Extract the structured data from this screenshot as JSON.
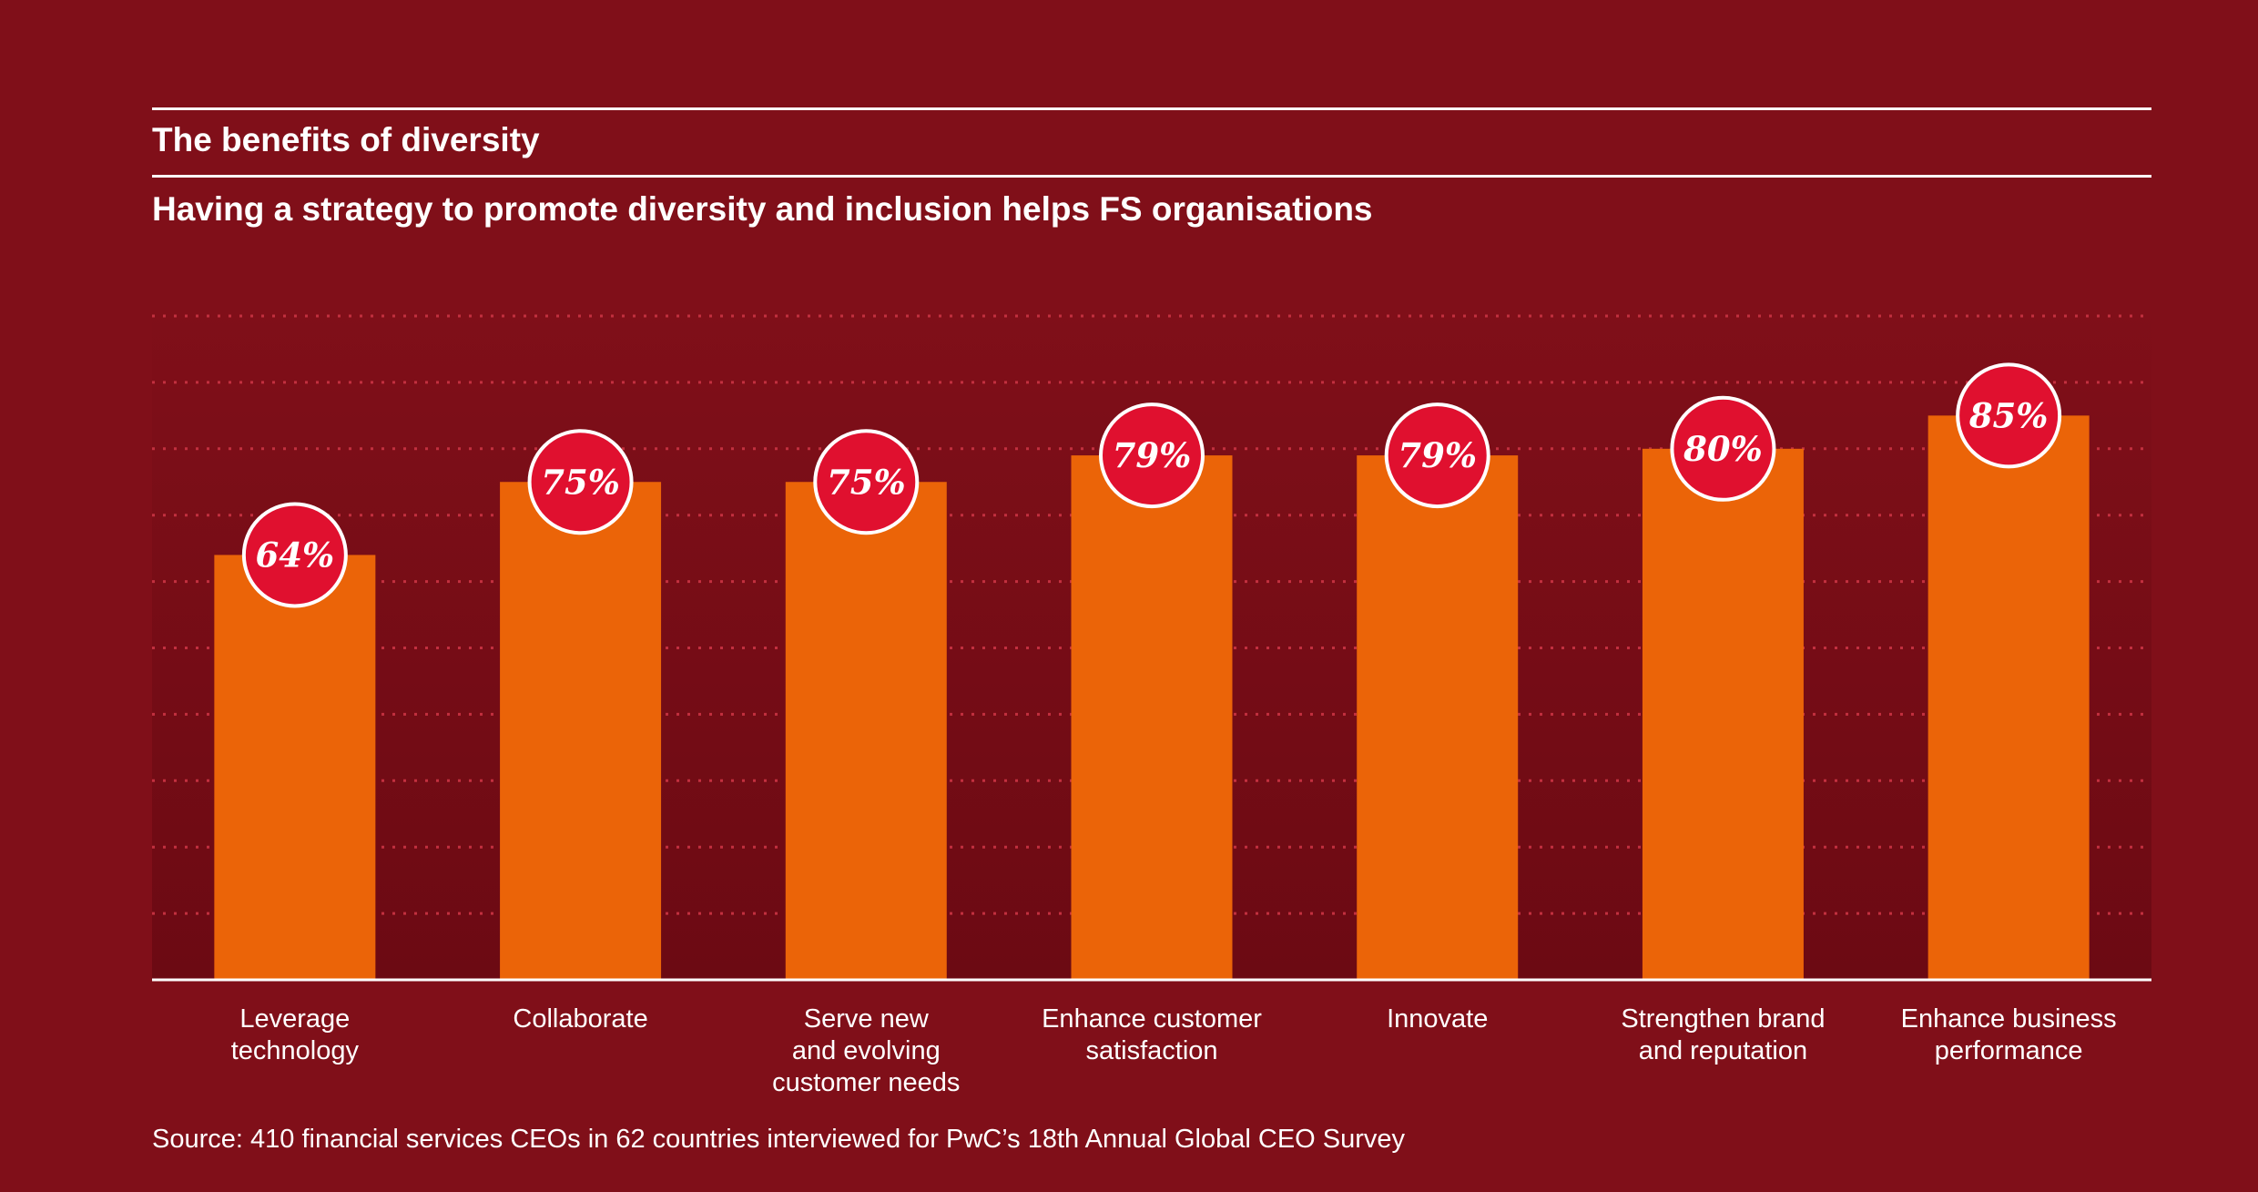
{
  "title": "The benefits of diversity",
  "subtitle": "Having a strategy to promote diversity and inclusion helps FS organisations",
  "source": "Source: 410 financial services CEOs in 62 countries interviewed for PwC’s 18th Annual Global CEO Survey",
  "colors": {
    "background": "#800f19",
    "bar": "#eb6408",
    "badge": "#e0102f",
    "grid": "#c2303f",
    "text": "#ffffff"
  },
  "chart_data": {
    "type": "bar",
    "title": "The benefits of diversity",
    "subtitle": "Having a strategy to promote diversity and inclusion helps FS organisations",
    "xlabel": "",
    "ylabel": "",
    "ylim": [
      0,
      100
    ],
    "grid": true,
    "grid_style": "dotted",
    "categories": [
      [
        "Leverage",
        "technology"
      ],
      [
        "Collaborate"
      ],
      [
        "Serve new",
        "and evolving",
        "customer needs"
      ],
      [
        "Enhance customer",
        "satisfaction"
      ],
      [
        "Innovate"
      ],
      [
        "Strengthen brand",
        "and reputation"
      ],
      [
        "Enhance business",
        "performance"
      ]
    ],
    "values": [
      64,
      75,
      75,
      79,
      79,
      80,
      85
    ],
    "labels": [
      "64%",
      "75%",
      "75%",
      "79%",
      "79%",
      "80%",
      "85%"
    ]
  }
}
